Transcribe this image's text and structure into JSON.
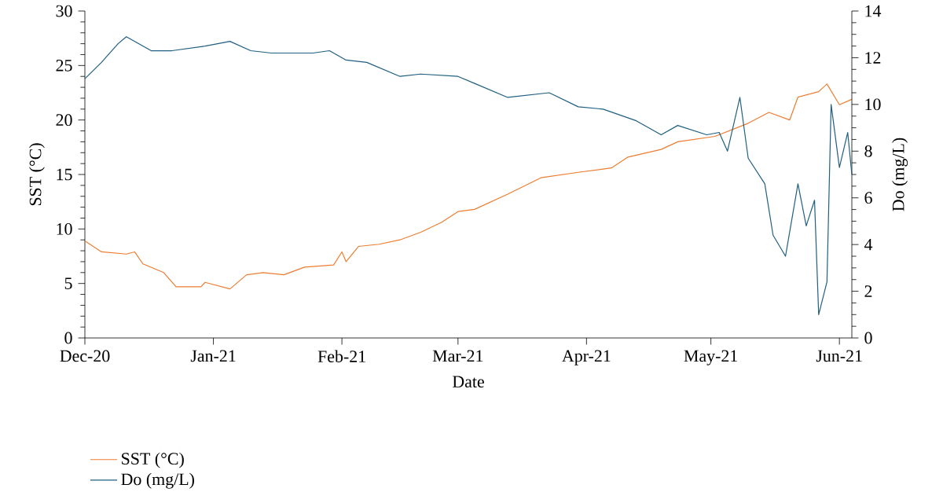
{
  "chart_data": {
    "type": "line",
    "xlabel": "Date",
    "ylabel": "SST (°C)",
    "y2label": "Do (mg/L)",
    "xlim": [
      "2020-12-01",
      "2021-06-04"
    ],
    "xticks": [
      {
        "value": "2020-12-01",
        "label": "Dec-20"
      },
      {
        "value": "2021-01-01",
        "label": "Jan-21"
      },
      {
        "value": "2021-02-01",
        "label": "Feb-21"
      },
      {
        "value": "2021-03-01",
        "label": "Mar-21"
      },
      {
        "value": "2021-04-01",
        "label": "Apr-21"
      },
      {
        "value": "2021-05-01",
        "label": "May-21"
      },
      {
        "value": "2021-06-01",
        "label": "Jun-21"
      }
    ],
    "ylim": [
      0,
      30
    ],
    "yticks": [
      0,
      5,
      10,
      15,
      20,
      25,
      30
    ],
    "y2lim": [
      0,
      14
    ],
    "y2ticks": [
      0,
      2,
      4,
      6,
      8,
      10,
      12,
      14
    ],
    "grid": false,
    "legend": "bottom left",
    "marker": "none",
    "line_style": "solid",
    "series": [
      {
        "name": "SST (°C)",
        "color": "#ed7d31",
        "x": [
          "2020-12-01",
          "2020-12-05",
          "2020-12-11",
          "2020-12-13",
          "2020-12-15",
          "2020-12-20",
          "2020-12-23",
          "2020-12-29",
          "2020-12-30",
          "2021-01-05",
          "2021-01-09",
          "2021-01-13",
          "2021-01-18",
          "2021-01-23",
          "2021-01-30",
          "2021-02-01",
          "2021-02-02",
          "2021-02-05",
          "2021-02-10",
          "2021-02-15",
          "2021-02-20",
          "2021-02-25",
          "2021-03-01",
          "2021-03-05",
          "2021-03-13",
          "2021-03-21",
          "2021-03-30",
          "2021-04-07",
          "2021-04-11",
          "2021-04-19",
          "2021-04-23",
          "2021-05-02",
          "2021-05-10",
          "2021-05-15",
          "2021-05-20",
          "2021-05-22",
          "2021-05-27",
          "2021-05-29",
          "2021-06-01",
          "2021-06-04"
        ],
        "values": [
          8.9,
          7.9,
          7.7,
          7.9,
          6.8,
          6.0,
          4.7,
          4.7,
          5.1,
          4.5,
          5.8,
          6.0,
          5.8,
          6.5,
          6.7,
          7.9,
          7.0,
          8.4,
          8.6,
          9.0,
          9.7,
          10.6,
          11.6,
          11.8,
          13.2,
          14.7,
          15.2,
          15.6,
          16.6,
          17.3,
          18.0,
          18.5,
          19.7,
          20.7,
          20.0,
          22.1,
          22.6,
          23.3,
          21.4,
          21.9
        ]
      },
      {
        "name": "Do (mg/L)",
        "color": "#1f5f80",
        "axis": "y2",
        "x": [
          "2020-12-01",
          "2020-12-05",
          "2020-12-09",
          "2020-12-11",
          "2020-12-17",
          "2020-12-22",
          "2020-12-30",
          "2021-01-05",
          "2021-01-10",
          "2021-01-15",
          "2021-01-25",
          "2021-01-29",
          "2021-02-02",
          "2021-02-07",
          "2021-02-15",
          "2021-02-20",
          "2021-03-01",
          "2021-03-05",
          "2021-03-13",
          "2021-03-23",
          "2021-03-30",
          "2021-04-05",
          "2021-04-13",
          "2021-04-19",
          "2021-04-23",
          "2021-04-30",
          "2021-05-03",
          "2021-05-05",
          "2021-05-08",
          "2021-05-10",
          "2021-05-14",
          "2021-05-16",
          "2021-05-19",
          "2021-05-22",
          "2021-05-24",
          "2021-05-26",
          "2021-05-27",
          "2021-05-29",
          "2021-05-30",
          "2021-06-01",
          "2021-06-03",
          "2021-06-04"
        ],
        "values": [
          11.1,
          11.8,
          12.6,
          12.9,
          12.3,
          12.3,
          12.5,
          12.7,
          12.3,
          12.2,
          12.2,
          12.3,
          11.9,
          11.8,
          11.2,
          11.3,
          11.2,
          10.9,
          10.3,
          10.5,
          9.9,
          9.8,
          9.3,
          8.7,
          9.1,
          8.7,
          8.8,
          8.0,
          10.3,
          7.7,
          6.6,
          4.4,
          3.5,
          6.6,
          4.8,
          5.9,
          1.0,
          2.4,
          10.0,
          7.3,
          8.8,
          7.0
        ]
      }
    ]
  }
}
